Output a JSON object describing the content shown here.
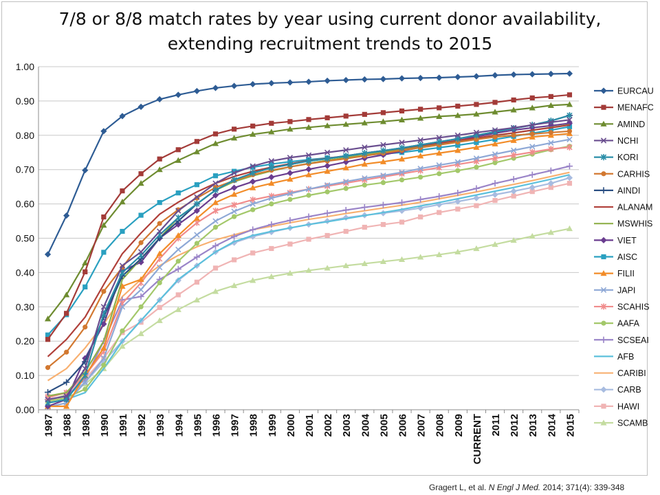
{
  "chart_data": {
    "type": "line",
    "title": [
      "7/8 or 8/8 match rates by year using current donor availability,",
      "extending recruitment trends to 2015"
    ],
    "xlabel": "",
    "ylabel": "",
    "ylim": [
      0,
      1
    ],
    "yticks": [
      "0.00",
      "0.10",
      "0.20",
      "0.30",
      "0.40",
      "0.50",
      "0.60",
      "0.70",
      "0.80",
      "0.90",
      "1.00"
    ],
    "grid": "horizontal",
    "legend_position": "right",
    "categories": [
      "1987",
      "1988",
      "1989",
      "1990",
      "1991",
      "1992",
      "1993",
      "1994",
      "1995",
      "1996",
      "1997",
      "1998",
      "1999",
      "2000",
      "2001",
      "2002",
      "2003",
      "2004",
      "2005",
      "2006",
      "2007",
      "2008",
      "2009",
      "CURRENT",
      "2011",
      "2012",
      "2013",
      "2014",
      "2015"
    ],
    "series": [
      {
        "name": "EURCAU",
        "color": "#2e5c94",
        "marker": "diamond",
        "values": [
          0.453,
          0.566,
          0.698,
          0.812,
          0.856,
          0.883,
          0.905,
          0.918,
          0.929,
          0.938,
          0.944,
          0.949,
          0.952,
          0.954,
          0.956,
          0.959,
          0.961,
          0.963,
          0.964,
          0.966,
          0.967,
          0.968,
          0.97,
          0.972,
          0.975,
          0.977,
          0.978,
          0.979,
          0.98
        ]
      },
      {
        "name": "MENAFC",
        "color": "#a33b38",
        "marker": "square",
        "values": [
          0.205,
          0.281,
          0.402,
          0.562,
          0.638,
          0.688,
          0.731,
          0.758,
          0.782,
          0.804,
          0.818,
          0.827,
          0.835,
          0.84,
          0.846,
          0.851,
          0.856,
          0.861,
          0.866,
          0.871,
          0.876,
          0.88,
          0.885,
          0.89,
          0.896,
          0.903,
          0.909,
          0.913,
          0.918
        ]
      },
      {
        "name": "AMIND",
        "color": "#6e8c30",
        "marker": "triangle",
        "values": [
          0.265,
          0.335,
          0.428,
          0.538,
          0.606,
          0.66,
          0.7,
          0.727,
          0.752,
          0.776,
          0.792,
          0.803,
          0.81,
          0.818,
          0.823,
          0.828,
          0.832,
          0.836,
          0.84,
          0.845,
          0.85,
          0.855,
          0.858,
          0.862,
          0.868,
          0.874,
          0.88,
          0.887,
          0.89
        ]
      },
      {
        "name": "NCHI",
        "color": "#6a4e8f",
        "marker": "x",
        "values": [
          0.03,
          0.04,
          0.12,
          0.3,
          0.42,
          0.46,
          0.52,
          0.58,
          0.62,
          0.66,
          0.69,
          0.71,
          0.725,
          0.735,
          0.742,
          0.75,
          0.757,
          0.765,
          0.772,
          0.779,
          0.786,
          0.793,
          0.8,
          0.808,
          0.815,
          0.822,
          0.83,
          0.838,
          0.845
        ]
      },
      {
        "name": "KORI",
        "color": "#2a8ea8",
        "marker": "star",
        "values": [
          0.02,
          0.03,
          0.1,
          0.28,
          0.4,
          0.45,
          0.51,
          0.56,
          0.6,
          0.64,
          0.67,
          0.69,
          0.705,
          0.715,
          0.725,
          0.732,
          0.74,
          0.748,
          0.755,
          0.763,
          0.772,
          0.781,
          0.79,
          0.8,
          0.81,
          0.82,
          0.83,
          0.842,
          0.858
        ]
      },
      {
        "name": "CARHIS",
        "color": "#d27830",
        "marker": "circle",
        "values": [
          0.123,
          0.168,
          0.241,
          0.345,
          0.415,
          0.487,
          0.543,
          0.583,
          0.617,
          0.648,
          0.668,
          0.685,
          0.698,
          0.708,
          0.717,
          0.725,
          0.732,
          0.74,
          0.748,
          0.756,
          0.764,
          0.772,
          0.78,
          0.788,
          0.795,
          0.8,
          0.804,
          0.808,
          0.812
        ]
      },
      {
        "name": "AINDI",
        "color": "#2b4f82",
        "marker": "plus",
        "values": [
          0.051,
          0.08,
          0.14,
          0.27,
          0.39,
          0.44,
          0.5,
          0.55,
          0.6,
          0.64,
          0.67,
          0.69,
          0.705,
          0.715,
          0.725,
          0.732,
          0.74,
          0.748,
          0.755,
          0.763,
          0.772,
          0.781,
          0.79,
          0.8,
          0.81,
          0.82,
          0.83,
          0.842,
          0.858
        ]
      },
      {
        "name": "ALANAM",
        "color": "#b0403a",
        "marker": "none",
        "values": [
          0.155,
          0.205,
          0.27,
          0.365,
          0.455,
          0.515,
          0.57,
          0.605,
          0.635,
          0.66,
          0.68,
          0.695,
          0.707,
          0.717,
          0.726,
          0.733,
          0.74,
          0.748,
          0.755,
          0.762,
          0.77,
          0.777,
          0.785,
          0.792,
          0.8,
          0.807,
          0.815,
          0.822,
          0.83
        ]
      },
      {
        "name": "MSWHIS",
        "color": "#8fb04a",
        "marker": "none",
        "values": [
          0.04,
          0.05,
          0.11,
          0.2,
          0.38,
          0.44,
          0.5,
          0.56,
          0.6,
          0.64,
          0.665,
          0.682,
          0.696,
          0.708,
          0.718,
          0.727,
          0.735,
          0.743,
          0.751,
          0.759,
          0.767,
          0.775,
          0.783,
          0.791,
          0.799,
          0.807,
          0.815,
          0.823,
          0.831
        ]
      },
      {
        "name": "VIET",
        "color": "#6a3d8f",
        "marker": "diamond",
        "values": [
          0.01,
          0.03,
          0.15,
          0.25,
          0.405,
          0.43,
          0.5,
          0.54,
          0.58,
          0.625,
          0.647,
          0.665,
          0.678,
          0.69,
          0.701,
          0.711,
          0.722,
          0.733,
          0.743,
          0.754,
          0.765,
          0.775,
          0.785,
          0.796,
          0.806,
          0.815,
          0.822,
          0.828,
          0.835
        ]
      },
      {
        "name": "AISC",
        "color": "#2aa0c0",
        "marker": "square",
        "values": [
          0.218,
          0.277,
          0.358,
          0.459,
          0.52,
          0.567,
          0.604,
          0.632,
          0.656,
          0.682,
          0.695,
          0.707,
          0.716,
          0.723,
          0.729,
          0.734,
          0.738,
          0.742,
          0.746,
          0.75,
          0.757,
          0.764,
          0.771,
          0.779,
          0.788,
          0.797,
          0.806,
          0.815,
          0.825
        ]
      },
      {
        "name": "FILII",
        "color": "#f28c28",
        "marker": "triangle",
        "values": [
          0.01,
          0.01,
          0.1,
          0.18,
          0.36,
          0.38,
          0.455,
          0.508,
          0.558,
          0.604,
          0.628,
          0.647,
          0.66,
          0.672,
          0.685,
          0.695,
          0.705,
          0.716,
          0.723,
          0.731,
          0.74,
          0.748,
          0.756,
          0.765,
          0.775,
          0.785,
          0.795,
          0.8,
          0.805
        ]
      },
      {
        "name": "JAPI",
        "color": "#8ea8d6",
        "marker": "x",
        "values": [
          0.008,
          0.02,
          0.08,
          0.15,
          0.3,
          0.35,
          0.415,
          0.467,
          0.51,
          0.55,
          0.578,
          0.6,
          0.617,
          0.63,
          0.643,
          0.655,
          0.665,
          0.675,
          0.683,
          0.692,
          0.703,
          0.713,
          0.722,
          0.733,
          0.745,
          0.756,
          0.767,
          0.778,
          0.788
        ]
      },
      {
        "name": "SCAHIS",
        "color": "#f08c8c",
        "marker": "star",
        "values": [
          0.035,
          0.05,
          0.1,
          0.17,
          0.31,
          0.37,
          0.44,
          0.5,
          0.545,
          0.58,
          0.597,
          0.612,
          0.623,
          0.633,
          0.643,
          0.652,
          0.661,
          0.67,
          0.679,
          0.688,
          0.697,
          0.706,
          0.715,
          0.724,
          0.733,
          0.742,
          0.751,
          0.76,
          0.765
        ]
      },
      {
        "name": "AAFA",
        "color": "#a3c86a",
        "marker": "circle",
        "values": [
          0.025,
          0.035,
          0.06,
          0.13,
          0.23,
          0.3,
          0.37,
          0.433,
          0.485,
          0.532,
          0.563,
          0.583,
          0.6,
          0.613,
          0.625,
          0.635,
          0.645,
          0.655,
          0.662,
          0.67,
          0.678,
          0.688,
          0.697,
          0.707,
          0.72,
          0.733,
          0.745,
          0.758,
          0.768
        ]
      },
      {
        "name": "SCSEAI",
        "color": "#9a84c8",
        "marker": "plus",
        "values": [
          0.03,
          0.04,
          0.09,
          0.2,
          0.32,
          0.33,
          0.38,
          0.41,
          0.445,
          0.478,
          0.505,
          0.525,
          0.54,
          0.552,
          0.563,
          0.573,
          0.582,
          0.59,
          0.597,
          0.604,
          0.613,
          0.622,
          0.632,
          0.645,
          0.66,
          0.672,
          0.685,
          0.697,
          0.71
        ]
      },
      {
        "name": "AFB",
        "color": "#5cc0dc",
        "marker": "none",
        "values": [
          0.02,
          0.03,
          0.05,
          0.12,
          0.2,
          0.26,
          0.32,
          0.38,
          0.42,
          0.46,
          0.49,
          0.508,
          0.52,
          0.53,
          0.54,
          0.548,
          0.557,
          0.566,
          0.575,
          0.584,
          0.594,
          0.604,
          0.615,
          0.626,
          0.637,
          0.648,
          0.66,
          0.672,
          0.685
        ]
      },
      {
        "name": "CARIBI",
        "color": "#f8b070",
        "marker": "none",
        "values": [
          0.085,
          0.12,
          0.18,
          0.25,
          0.33,
          0.38,
          0.42,
          0.45,
          0.475,
          0.495,
          0.51,
          0.525,
          0.535,
          0.545,
          0.555,
          0.563,
          0.572,
          0.58,
          0.588,
          0.596,
          0.605,
          0.615,
          0.625,
          0.635,
          0.646,
          0.657,
          0.668,
          0.68,
          0.692
        ]
      },
      {
        "name": "CARB",
        "color": "#a8bce0",
        "marker": "diamond",
        "values": [
          0.03,
          0.04,
          0.08,
          0.14,
          0.2,
          0.26,
          0.32,
          0.377,
          0.42,
          0.46,
          0.487,
          0.505,
          0.518,
          0.53,
          0.54,
          0.55,
          0.56,
          0.567,
          0.573,
          0.58,
          0.588,
          0.598,
          0.607,
          0.617,
          0.627,
          0.637,
          0.648,
          0.66,
          0.676
        ]
      },
      {
        "name": "HAWI",
        "color": "#f0b4b4",
        "marker": "square",
        "values": [
          0.04,
          0.05,
          0.09,
          0.15,
          0.225,
          0.255,
          0.298,
          0.335,
          0.372,
          0.413,
          0.437,
          0.457,
          0.47,
          0.483,
          0.497,
          0.508,
          0.52,
          0.532,
          0.54,
          0.547,
          0.562,
          0.575,
          0.585,
          0.595,
          0.61,
          0.623,
          0.636,
          0.648,
          0.66
        ]
      },
      {
        "name": "SCAMB",
        "color": "#c4dca0",
        "marker": "triangle",
        "values": [
          0.025,
          0.045,
          0.075,
          0.12,
          0.185,
          0.222,
          0.26,
          0.292,
          0.32,
          0.345,
          0.362,
          0.377,
          0.388,
          0.398,
          0.406,
          0.413,
          0.42,
          0.426,
          0.432,
          0.438,
          0.445,
          0.452,
          0.46,
          0.47,
          0.482,
          0.494,
          0.506,
          0.517,
          0.528
        ]
      }
    ]
  },
  "citation": {
    "authors": "Gragert L, et al.",
    "journal": "N Engl J Med.",
    "details": "2014; 371(4): 339-348"
  }
}
